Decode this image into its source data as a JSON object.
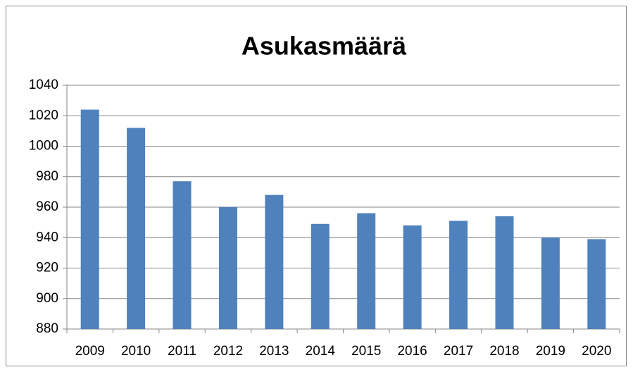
{
  "chart_data": {
    "type": "bar",
    "title": "Asukasmäärä",
    "categories": [
      "2009",
      "2010",
      "2011",
      "2012",
      "2013",
      "2014",
      "2015",
      "2016",
      "2017",
      "2018",
      "2019",
      "2020"
    ],
    "values": [
      1024,
      1012,
      977,
      960,
      968,
      949,
      956,
      948,
      951,
      954,
      940,
      939
    ],
    "color": "#4f81bd",
    "ylim": [
      880,
      1040
    ],
    "yticks": [
      880,
      900,
      920,
      940,
      960,
      980,
      1000,
      1020,
      1040
    ],
    "grid": true
  }
}
